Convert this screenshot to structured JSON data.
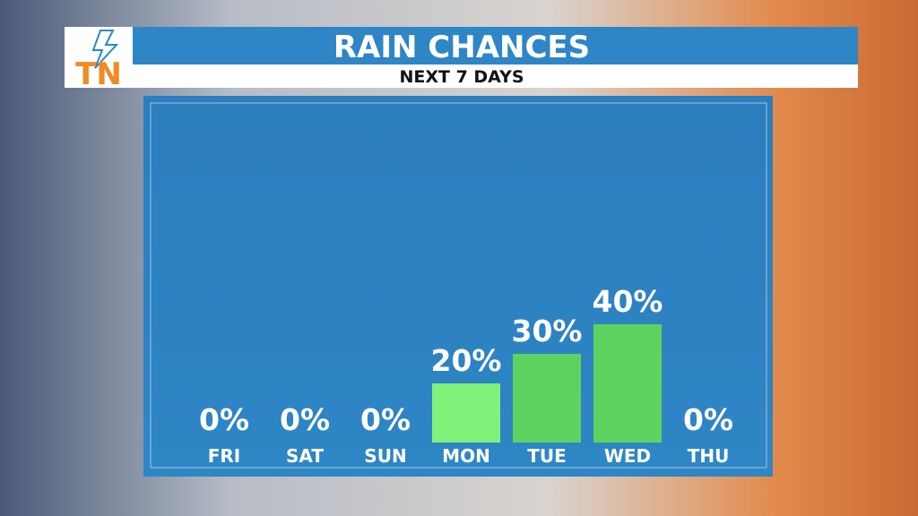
{
  "logo": "TN",
  "chart_data": {
    "type": "bar",
    "title": "RAIN CHANCES",
    "subtitle": "NEXT 7 DAYS",
    "categories": [
      "FRI",
      "SAT",
      "SUN",
      "MON",
      "TUE",
      "WED",
      "THU"
    ],
    "values": [
      0,
      0,
      0,
      20,
      30,
      40,
      0
    ],
    "value_labels": [
      "0%",
      "0%",
      "0%",
      "20%",
      "30%",
      "40%",
      "0%"
    ],
    "colors": [
      "#5fd35f",
      "#5fd35f",
      "#5fd35f",
      "#80f27a",
      "#5fd35f",
      "#5fd35f",
      "#5fd35f"
    ]
  }
}
